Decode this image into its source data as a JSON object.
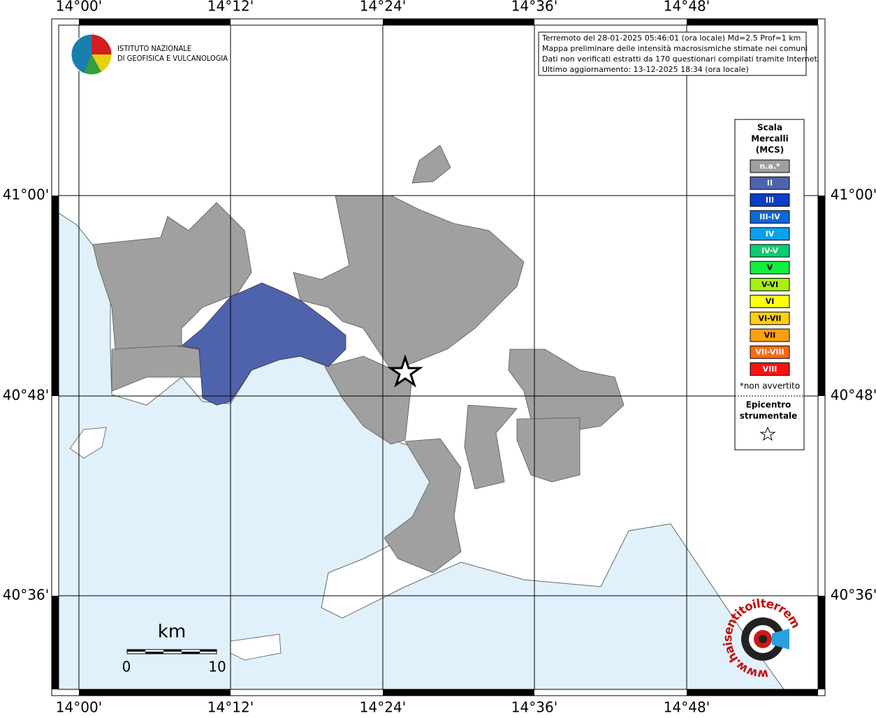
{
  "logo": {
    "lines": [
      "ISTITUTO NAZIONALE",
      "DI GEOFISICA E VULCANOLOGIA"
    ]
  },
  "info": {
    "lines": [
      "Terremoto del 28-01-2025 05:46:01 (ora locale) Md=2.5 Prof=1 km",
      "Mappa preliminare delle intensità macrosismiche stimate nei comuni",
      "Dati non verificati estratti da 170 questionari compilati tramite Internet.",
      "Ultimo aggiornamento: 13-12-2025 18:34 (ora locale)"
    ]
  },
  "axes": {
    "top": [
      "14°00'",
      "14°12'",
      "14°24'",
      "14°36'",
      "14°48'"
    ],
    "bottom": [
      "14°00'",
      "14°12'",
      "14°24'",
      "14°36'",
      "14°48'"
    ],
    "left": [
      "41°00'",
      "40°48'",
      "40°36'"
    ],
    "right": [
      "41°00'",
      "40°48'",
      "40°36'"
    ]
  },
  "legend": {
    "title": [
      "Scala",
      "Mercalli",
      "(MCS)"
    ],
    "items": [
      {
        "label": "n.a.*",
        "color": "#a0a0a0"
      },
      {
        "label": "II",
        "color": "#4f63ad"
      },
      {
        "label": "III",
        "color": "#0a3ec8"
      },
      {
        "label": "III-IV",
        "color": "#0a6ad8"
      },
      {
        "label": "IV",
        "color": "#0aa0ec"
      },
      {
        "label": "IV-V",
        "color": "#0acc70"
      },
      {
        "label": "V",
        "color": "#10ee40"
      },
      {
        "label": "V-VI",
        "color": "#a8f010"
      },
      {
        "label": "VI",
        "color": "#ffff10"
      },
      {
        "label": "VI-VII",
        "color": "#ffd010"
      },
      {
        "label": "VII",
        "color": "#ffa010"
      },
      {
        "label": "VII-VIII",
        "color": "#ff6a10"
      },
      {
        "label": "VIII",
        "color": "#ff1010"
      }
    ],
    "note": "*non avvertito",
    "epicenter": [
      "Epicentro",
      "strumentale"
    ]
  },
  "scale": {
    "unit": "km",
    "labels": [
      "0",
      "10"
    ]
  },
  "badge": {
    "text": "www.haisentitoilterremoto.it"
  }
}
